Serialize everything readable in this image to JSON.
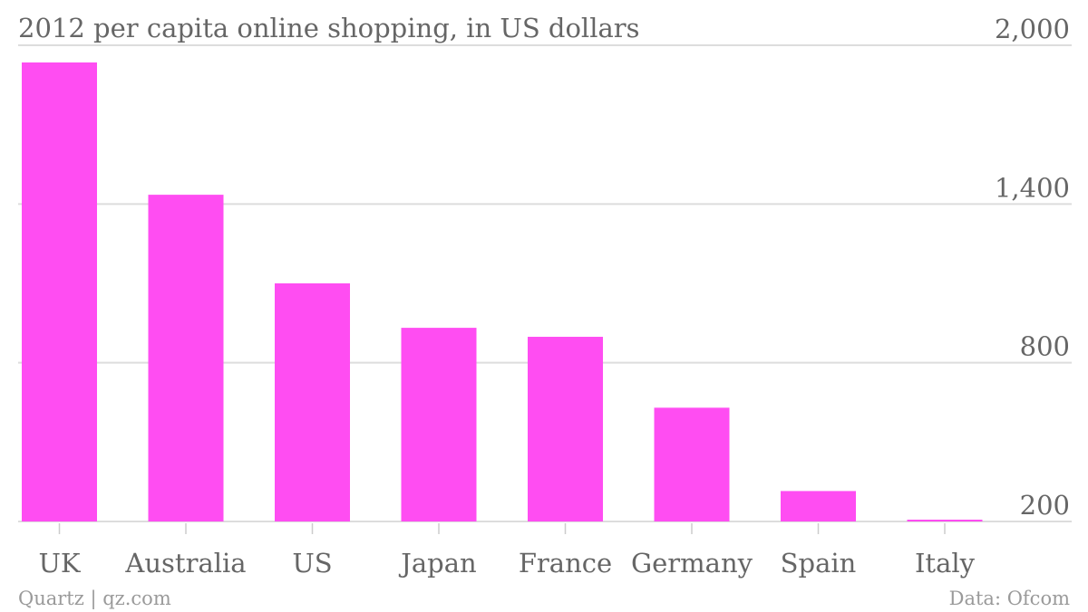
{
  "chart_data": {
    "type": "bar",
    "title": "2012 per capita online shopping, in US dollars",
    "categories": [
      "UK",
      "Australia",
      "US",
      "Japan",
      "France",
      "Germany",
      "Spain",
      "Italy"
    ],
    "values": [
      1935,
      1435,
      1100,
      932,
      898,
      630,
      315,
      205
    ],
    "ylim": [
      200,
      2000
    ],
    "yticks": [
      "2,000",
      "1,400",
      "800",
      "200"
    ],
    "ytick_values": [
      2000,
      1400,
      800,
      200
    ],
    "y_axis_side": "right",
    "grid": true,
    "bar_color": "#ff4df2",
    "source_left": "Quartz | qz.com",
    "source_right": "Data: Ofcom"
  }
}
